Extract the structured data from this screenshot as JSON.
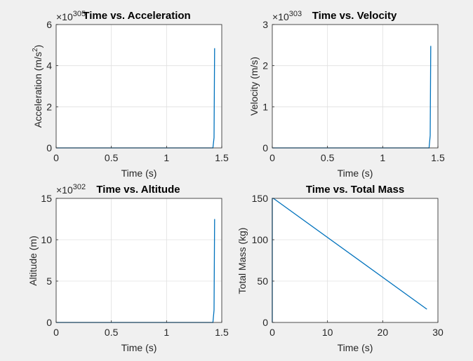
{
  "colors": {
    "figure_bg": "#f0f0f0",
    "axes_bg": "#ffffff",
    "axis": "#262626",
    "grid": "#e0e0e0",
    "line": "#0072bd"
  },
  "chart_data": [
    {
      "type": "line",
      "title": "Time vs. Acceleration",
      "xlabel": "Time (s)",
      "ylabel": "Acceleration (m/s",
      "ylabel_sup": "2",
      "ylabel_tail": ")",
      "exponent_label": "×10",
      "exponent": "305",
      "xlim": [
        0,
        1.5
      ],
      "ylim": [
        0,
        6
      ],
      "xticks": [
        0,
        0.5,
        1,
        1.5
      ],
      "xtick_labels": [
        "0",
        "0.5",
        "1",
        "1.5"
      ],
      "yticks": [
        0,
        2,
        4,
        6
      ],
      "ytick_labels": [
        "0",
        "2",
        "4",
        "6"
      ],
      "grid": true,
      "legend": "none",
      "series": [
        {
          "x": [
            0,
            1.4,
            1.42,
            1.43,
            1.435
          ],
          "y": [
            0,
            0,
            0,
            0.5,
            4.85
          ]
        }
      ]
    },
    {
      "type": "line",
      "title": "Time vs. Velocity",
      "xlabel": "Time (s)",
      "ylabel": "Velocity (m/s)",
      "exponent_label": "×10",
      "exponent": "303",
      "xlim": [
        0,
        1.5
      ],
      "ylim": [
        0,
        3
      ],
      "xticks": [
        0,
        0.5,
        1,
        1.5
      ],
      "xtick_labels": [
        "0",
        "0.5",
        "1",
        "1.5"
      ],
      "yticks": [
        0,
        1,
        2,
        3
      ],
      "ytick_labels": [
        "0",
        "1",
        "2",
        "3"
      ],
      "grid": true,
      "legend": "none",
      "series": [
        {
          "x": [
            0,
            1.4,
            1.42,
            1.43,
            1.435
          ],
          "y": [
            0,
            0,
            0,
            0.3,
            2.48
          ]
        }
      ]
    },
    {
      "type": "line",
      "title": "Time vs. Altitude",
      "xlabel": "Time (s)",
      "ylabel": "Altitude (m)",
      "exponent_label": "×10",
      "exponent": "302",
      "xlim": [
        0,
        1.5
      ],
      "ylim": [
        0,
        15
      ],
      "xticks": [
        0,
        0.5,
        1,
        1.5
      ],
      "xtick_labels": [
        "0",
        "0.5",
        "1",
        "1.5"
      ],
      "yticks": [
        0,
        5,
        10,
        15
      ],
      "ytick_labels": [
        "0",
        "5",
        "10",
        "15"
      ],
      "grid": true,
      "legend": "none",
      "series": [
        {
          "x": [
            0,
            1.4,
            1.42,
            1.43,
            1.435
          ],
          "y": [
            0,
            0,
            0,
            1.5,
            12.5
          ]
        }
      ]
    },
    {
      "type": "line",
      "title": "Time vs. Total Mass",
      "xlabel": "Time (s)",
      "ylabel": "Total Mass (kg)",
      "exponent_label": "",
      "exponent": "",
      "xlim": [
        0,
        30
      ],
      "ylim": [
        0,
        150
      ],
      "xticks": [
        0,
        10,
        20,
        30
      ],
      "xtick_labels": [
        "0",
        "10",
        "20",
        "30"
      ],
      "yticks": [
        0,
        50,
        100,
        150
      ],
      "ytick_labels": [
        "0",
        "50",
        "100",
        "150"
      ],
      "grid": true,
      "legend": "none",
      "series": [
        {
          "x": [
            0,
            0,
            0.2,
            28
          ],
          "y": [
            0,
            150,
            150,
            16
          ]
        }
      ]
    }
  ]
}
